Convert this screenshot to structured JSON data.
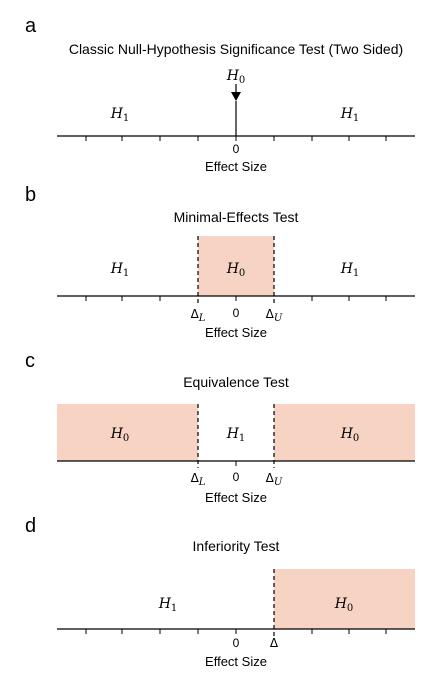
{
  "colors": {
    "h0_fill": "#f7d3c4",
    "ink": "#000000"
  },
  "panels": [
    {
      "letter": "a",
      "title": "Classic Null-Hypothesis Significance Test (Two Sided)",
      "h0_label": {
        "base": "H",
        "sub": "0"
      },
      "h1_left": {
        "base": "H",
        "sub": "1"
      },
      "h1_right": {
        "base": "H",
        "sub": "1"
      },
      "zero_label": "0",
      "axis_title": "Effect Size",
      "arrow_icon": "down-arrow-icon"
    },
    {
      "letter": "b",
      "title": "Minimal-Effects Test",
      "h0_label": {
        "base": "H",
        "sub": "0"
      },
      "h1_left": {
        "base": "H",
        "sub": "1"
      },
      "h1_right": {
        "base": "H",
        "sub": "1"
      },
      "delta_l": {
        "base": "Δ",
        "sub": "L"
      },
      "zero_label": "0",
      "delta_u": {
        "base": "Δ",
        "sub": "U"
      },
      "axis_title": "Effect Size"
    },
    {
      "letter": "c",
      "title": "Equivalence Test",
      "h0_left": {
        "base": "H",
        "sub": "0"
      },
      "h1_center": {
        "base": "H",
        "sub": "1"
      },
      "h0_right": {
        "base": "H",
        "sub": "0"
      },
      "delta_l": {
        "base": "Δ",
        "sub": "L"
      },
      "zero_label": "0",
      "delta_u": {
        "base": "Δ",
        "sub": "U"
      },
      "axis_title": "Effect Size"
    },
    {
      "letter": "d",
      "title": "Inferiority Test",
      "h1_left": {
        "base": "H",
        "sub": "1"
      },
      "h0_right": {
        "base": "H",
        "sub": "0"
      },
      "zero_label": "0",
      "delta": "Δ",
      "axis_title": "Effect Size"
    }
  ]
}
